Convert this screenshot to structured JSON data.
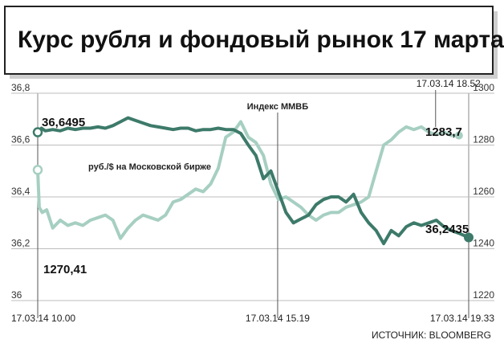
{
  "chart_data": {
    "type": "line",
    "title": "Курс рубля и фондовый рынок 17 марта",
    "source": "ИСТОЧНИК: BLOOMBERG",
    "left_axis": {
      "ticks": [
        "36,8",
        "36,6",
        "36,4",
        "36,2",
        "36"
      ],
      "range": [
        36.0,
        36.8
      ]
    },
    "right_axis": {
      "ticks": [
        "1300",
        "1280",
        "1260",
        "1240",
        "1220"
      ],
      "range": [
        1220,
        1300
      ]
    },
    "x_labels": {
      "start": "17.03.14 10.00",
      "middle": "17.03.14 15.19",
      "end": "17.03.14 19.33",
      "top": "17.03.14 18.52"
    },
    "x_range_minutes": [
      600,
      1173
    ],
    "colors": {
      "rub": "#3d7a6a",
      "index": "#a6cfc2",
      "frame": "#222222",
      "grid": "#bbbbbb"
    },
    "series": [
      {
        "name": "руб./$ на Московской бирже",
        "axis": "left",
        "start_label": "36,6495",
        "end_label": "36,2435",
        "x": [
          600,
          605,
          610,
          620,
          630,
          640,
          650,
          660,
          670,
          680,
          690,
          700,
          710,
          720,
          730,
          740,
          750,
          760,
          770,
          780,
          790,
          800,
          810,
          820,
          830,
          840,
          850,
          860,
          870,
          880,
          890,
          900,
          910,
          920,
          930,
          940,
          950,
          960,
          970,
          980,
          990,
          1000,
          1010,
          1020,
          1030,
          1040,
          1050,
          1060,
          1070,
          1080,
          1090,
          1100,
          1110,
          1120,
          1130,
          1140,
          1150,
          1160,
          1173
        ],
        "values": [
          36.6495,
          36.665,
          36.655,
          36.66,
          36.655,
          36.665,
          36.66,
          36.665,
          36.665,
          36.67,
          36.665,
          36.675,
          36.69,
          36.705,
          36.695,
          36.685,
          36.675,
          36.67,
          36.665,
          36.66,
          36.665,
          36.665,
          36.655,
          36.66,
          36.66,
          36.665,
          36.66,
          36.66,
          36.645,
          36.6,
          36.56,
          36.47,
          36.5,
          36.42,
          36.34,
          36.3,
          36.315,
          36.33,
          36.37,
          36.39,
          36.4,
          36.4,
          36.38,
          36.41,
          36.34,
          36.3,
          36.27,
          36.22,
          36.27,
          36.25,
          36.285,
          36.3,
          36.29,
          36.3,
          36.31,
          36.285,
          36.27,
          36.26,
          36.2435
        ]
      },
      {
        "name": "Индекс ММВБ",
        "axis": "right",
        "start_label": "1270,41",
        "end_label": "1283,7",
        "x": [
          600,
          602,
          606,
          612,
          620,
          630,
          640,
          650,
          660,
          670,
          680,
          690,
          700,
          710,
          720,
          730,
          740,
          750,
          760,
          770,
          780,
          790,
          800,
          810,
          820,
          830,
          840,
          850,
          860,
          870,
          880,
          890,
          900,
          910,
          920,
          930,
          940,
          950,
          960,
          970,
          980,
          990,
          1000,
          1010,
          1020,
          1030,
          1040,
          1050,
          1060,
          1070,
          1080,
          1090,
          1100,
          1110,
          1120,
          1130,
          1140,
          1150,
          1160
        ],
        "values": [
          1270.41,
          1256,
          1254,
          1255,
          1248,
          1251,
          1249,
          1250,
          1249,
          1251,
          1252,
          1253,
          1251,
          1244,
          1248,
          1251,
          1253,
          1252,
          1251,
          1253,
          1258,
          1259,
          1261,
          1263,
          1262,
          1265,
          1271,
          1283,
          1285,
          1289,
          1283,
          1281,
          1276,
          1265,
          1259,
          1260,
          1258,
          1256,
          1253,
          1251,
          1253,
          1254,
          1254,
          1256,
          1257,
          1258,
          1260,
          1270,
          1280,
          1282,
          1285,
          1287,
          1286,
          1287,
          1285,
          1284,
          1285,
          1283.7,
          1283.7
        ]
      }
    ],
    "annotations": [
      "Индекс ММВБ",
      "руб./$ на Московской бирже"
    ]
  }
}
